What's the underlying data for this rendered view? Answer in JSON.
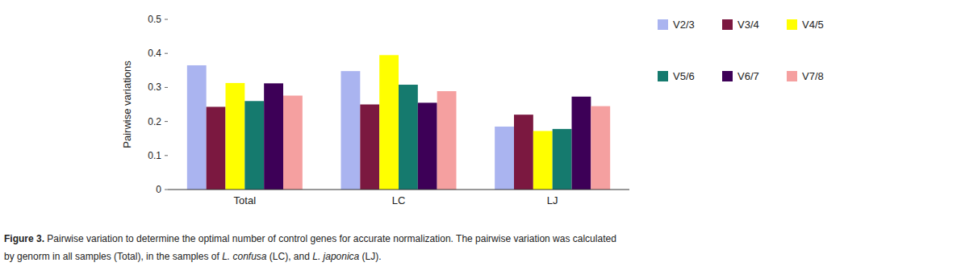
{
  "chart_data": {
    "type": "bar",
    "categories": [
      "Total",
      "LC",
      "LJ"
    ],
    "series": [
      {
        "name": "V2/3",
        "color": "#aab4f0",
        "values": [
          0.365,
          0.348,
          0.185
        ]
      },
      {
        "name": "V3/4",
        "color": "#7b1840",
        "values": [
          0.243,
          0.25,
          0.22
        ]
      },
      {
        "name": "V4/5",
        "color": "#ffff00",
        "values": [
          0.313,
          0.395,
          0.172
        ]
      },
      {
        "name": "V5/6",
        "color": "#157a6e",
        "values": [
          0.26,
          0.308,
          0.178
        ]
      },
      {
        "name": "V6/7",
        "color": "#3d0057",
        "values": [
          0.312,
          0.255,
          0.273
        ]
      },
      {
        "name": "V7/8",
        "color": "#f5a0a0",
        "values": [
          0.276,
          0.289,
          0.245
        ]
      }
    ],
    "ylabel": "Pairwise variations",
    "ylim": [
      0,
      0.5
    ],
    "yticks": [
      0,
      0.1,
      0.2,
      0.3,
      0.4,
      0.5
    ],
    "grid": false,
    "legend": "right",
    "annotations": [
      [
        "Figure 3.",
        " Pairwise variation to determine the optimal number of control genes for accurate normalization. The pairwise variation was calculated"
      ],
      [
        "by genorm in all samples (Total), in the samples of ",
        "L. confusa",
        " (LC), and ",
        "L. japonica",
        " (LJ)."
      ]
    ]
  }
}
